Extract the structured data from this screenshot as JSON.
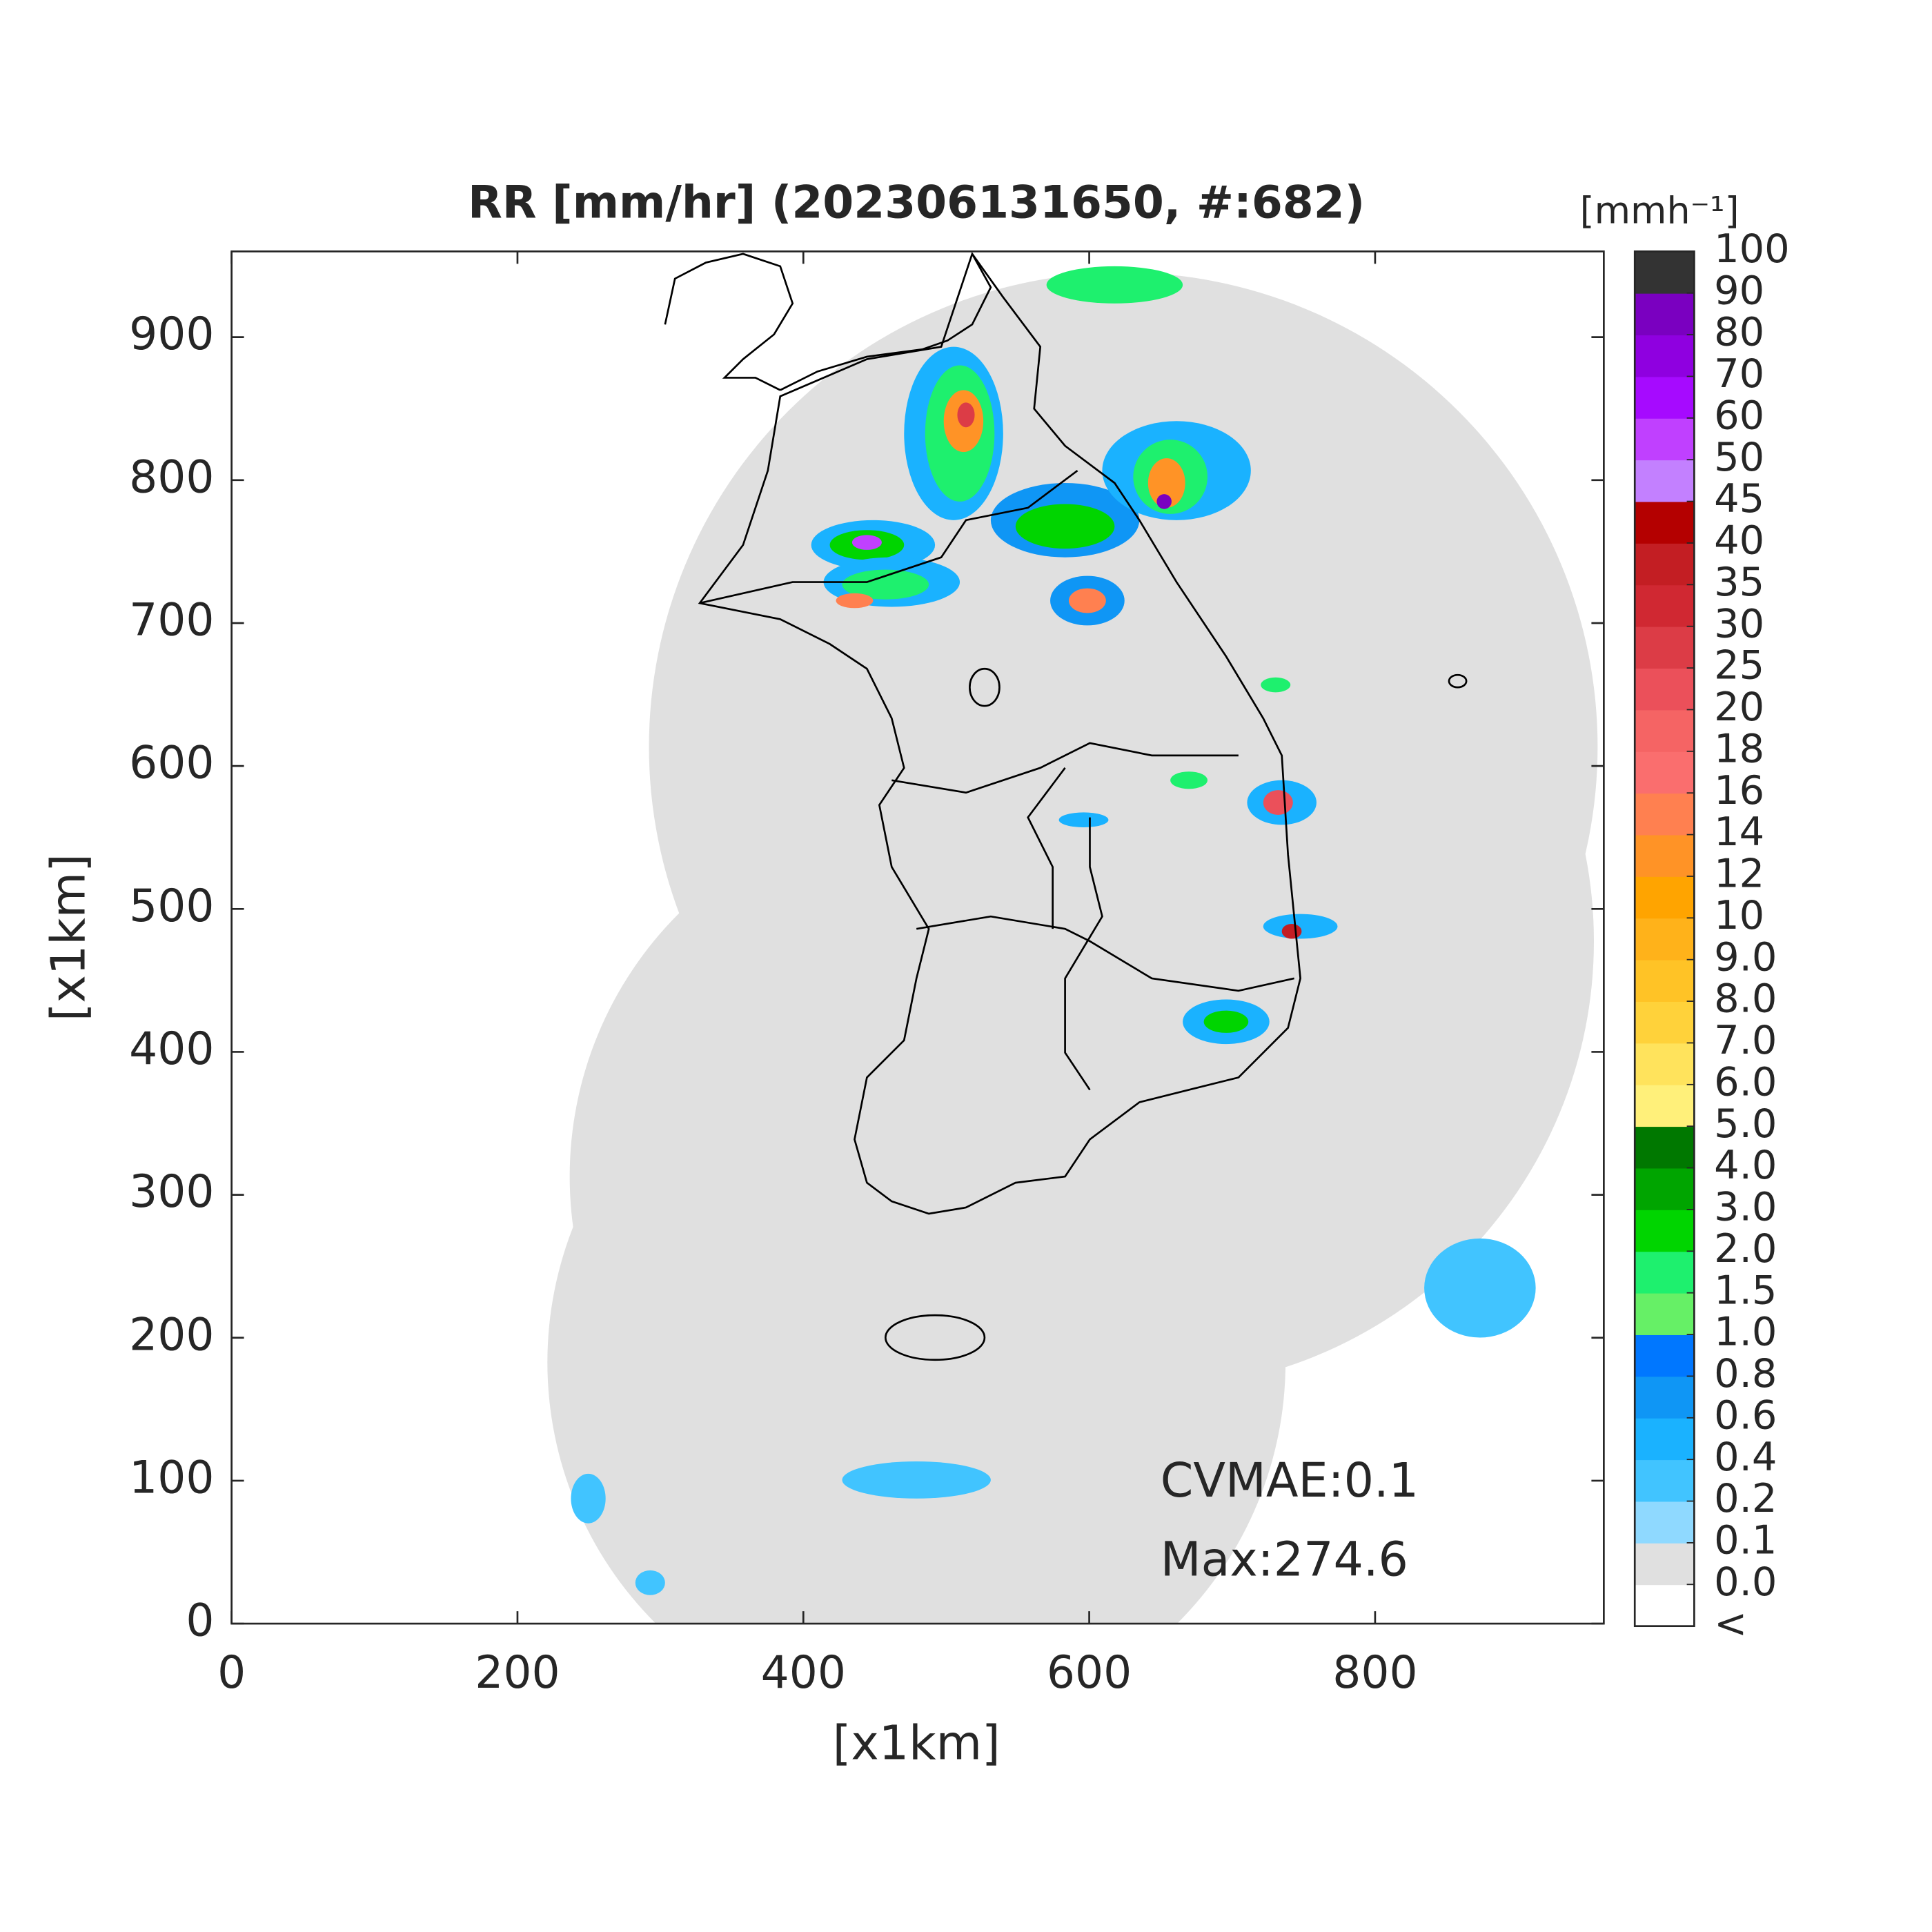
{
  "chart_data": {
    "type": "map",
    "title": "RR [mm/hr] (202306131650, #:682)",
    "x_label": "[x1km]",
    "y_label": "[x1km]",
    "xlim": [
      0,
      960
    ],
    "ylim": [
      0,
      960
    ],
    "xticks": [
      0,
      200,
      400,
      600,
      800
    ],
    "yticks": [
      0,
      100,
      200,
      300,
      400,
      500,
      600,
      700,
      800,
      900
    ],
    "annotations": [
      "CVMAE:0.1",
      "Max:274.6"
    ],
    "colorbar": {
      "label": "[mmh⁻¹]",
      "under_label": "<",
      "ticks": [
        {
          "value": 0,
          "label": "0.0"
        },
        0.1,
        0.2,
        0.4,
        0.6,
        0.8,
        {
          "value": 1,
          "label": "1.0"
        },
        1.5,
        {
          "value": 2,
          "label": "2.0"
        },
        {
          "value": 3,
          "label": "3.0"
        },
        {
          "value": 4,
          "label": "4.0"
        },
        {
          "value": 5,
          "label": "5.0"
        },
        {
          "value": 6,
          "label": "6.0"
        },
        {
          "value": 7,
          "label": "7.0"
        },
        {
          "value": 8,
          "label": "8.0"
        },
        {
          "value": 9,
          "label": "9.0"
        },
        10,
        12,
        14,
        16,
        18,
        20,
        25,
        30,
        35,
        40,
        45,
        50,
        60,
        70,
        80,
        90,
        100
      ],
      "colors": [
        "#ffffff",
        "#e0e0e0",
        "#8fd9ff",
        "#41c4ff",
        "#1ab2ff",
        "#0f96f5",
        "#0077ff",
        "#66f066",
        "#1ef06e",
        "#00d500",
        "#00a500",
        "#007800",
        "#fff07a",
        "#ffe35c",
        "#ffd23a",
        "#ffc326",
        "#ffb21a",
        "#ffa400",
        "#ff9326",
        "#ff8050",
        "#fa6e6e",
        "#f56464",
        "#eb505a",
        "#dc3c46",
        "#d02832",
        "#c31e23",
        "#b40000",
        "#c380ff",
        "#c040ff",
        "#a60aff",
        "#8f00e0",
        "#7a00c0",
        "#333333"
      ]
    }
  }
}
